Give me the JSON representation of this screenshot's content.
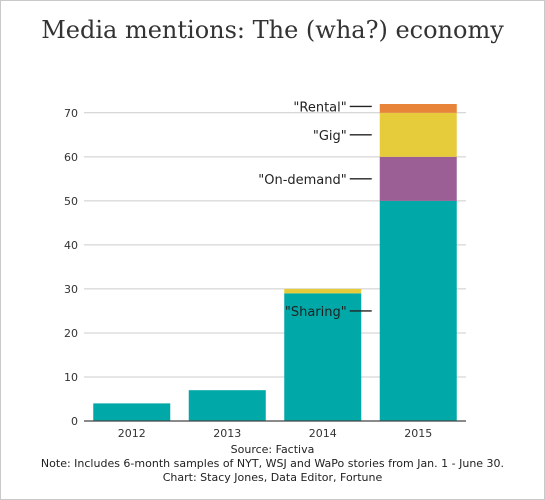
{
  "chart_data": {
    "type": "bar",
    "stacked": true,
    "title": "Media mentions: The (wha?) economy",
    "categories": [
      "2012",
      "2013",
      "2014",
      "2015"
    ],
    "series": [
      {
        "name": "\"Sharing\"",
        "values": [
          4,
          7,
          29,
          50
        ],
        "color": "#00a8a8"
      },
      {
        "name": "\"On-demand\"",
        "values": [
          0,
          0,
          0,
          10
        ],
        "color": "#9b5f96"
      },
      {
        "name": "\"Gig\"",
        "values": [
          0,
          0,
          1,
          10
        ],
        "color": "#e6cc3b"
      },
      {
        "name": "\"Rental\"",
        "values": [
          0,
          0,
          0,
          2
        ],
        "color": "#e8833a"
      }
    ],
    "ylim": [
      0,
      72
    ],
    "yticks": [
      0,
      10,
      20,
      30,
      40,
      50,
      60,
      70
    ],
    "grid": true,
    "legend": "inline labels beside the 2015 bar",
    "xlabel": "",
    "ylabel": ""
  },
  "footer": {
    "source": "Source: Factiva",
    "note": "Note: Includes 6-month samples of NYT, WSJ and WaPo stories from Jan. 1 - June 30.",
    "credit": "Chart: Stacy Jones, Data Editor, Fortune"
  }
}
